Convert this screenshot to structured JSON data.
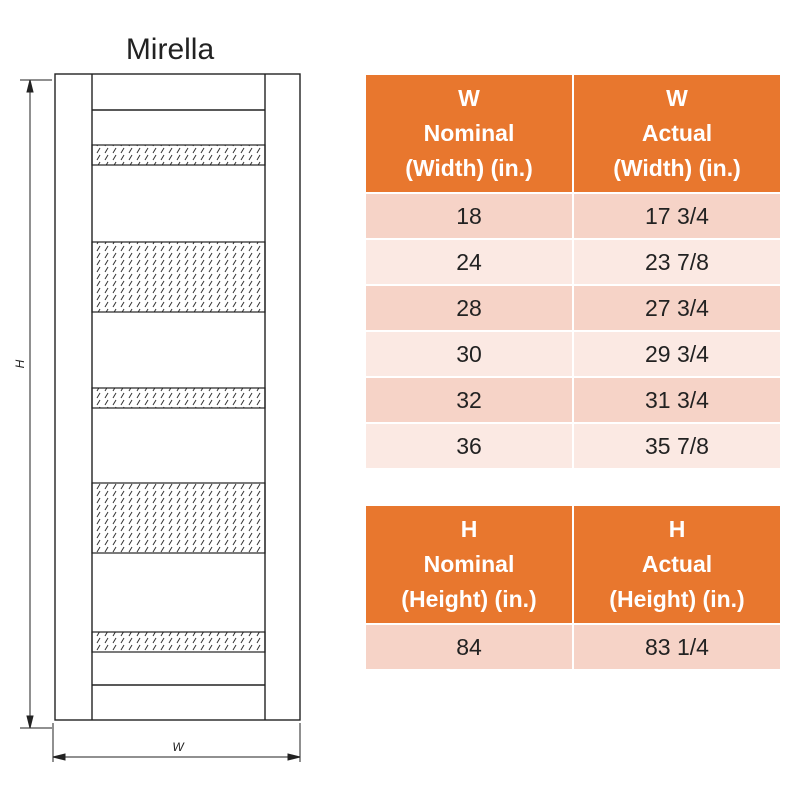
{
  "title": "Mirella",
  "dimension_labels": {
    "height": "H",
    "width": "W"
  },
  "width_table": {
    "headers": [
      [
        "W",
        "Nominal",
        "(Width) (in.)"
      ],
      [
        "W",
        "Actual",
        "(Width) (in.)"
      ]
    ],
    "rows": [
      [
        "18",
        "17 3/4"
      ],
      [
        "24",
        "23 7/8"
      ],
      [
        "28",
        "27 3/4"
      ],
      [
        "30",
        "29 3/4"
      ],
      [
        "32",
        "31 3/4"
      ],
      [
        "36",
        "35 7/8"
      ]
    ]
  },
  "height_table": {
    "headers": [
      [
        "H",
        "Nominal",
        "(Height) (in.)"
      ],
      [
        "H",
        "Actual",
        "(Height) (in.)"
      ]
    ],
    "rows": [
      [
        "84",
        "83 1/4"
      ]
    ]
  },
  "colors": {
    "header": "#e8772e",
    "row_odd": "#f6d3c7",
    "row_even": "#fbe9e3"
  }
}
